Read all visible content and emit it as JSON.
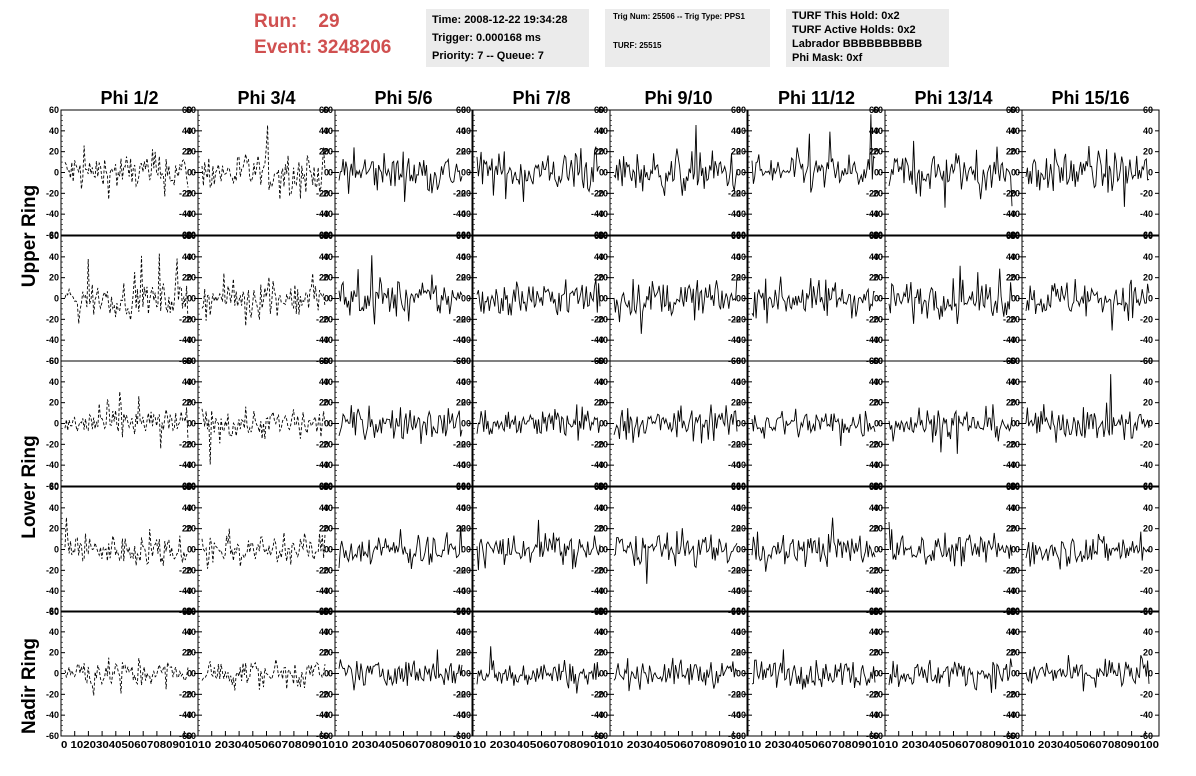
{
  "header": {
    "run_label": "Run:",
    "run_value": "29",
    "event_label": "Event:",
    "event_value": "3248206"
  },
  "time_box": {
    "time": "Time: 2008-12-22 19:34:28",
    "trigger": "Trigger: 0.000168 ms",
    "priority": "Priority: 7 -- Queue: 7"
  },
  "trig_box": {
    "trig_line": "Trig Num: 25506 -- Trig Type: PPS1",
    "turf_line": "TURF: 25515"
  },
  "turf_box": {
    "this_hold": "TURF This Hold: 0x2",
    "active_holds": "TURF Active Holds: 0x2",
    "labrador": "Labrador BBBBBBBBBB",
    "phi_mask": "Phi Mask: 0xf"
  },
  "columns": [
    "Phi 1/2",
    "Phi 3/4",
    "Phi 5/6",
    "Phi 7/8",
    "Phi 9/10",
    "Phi 11/12",
    "Phi 13/14",
    "Phi 15/16"
  ],
  "rows": [
    "Upper Ring",
    "Lower Ring",
    "Nadir Ring"
  ],
  "chart_data": {
    "type": "line",
    "description_grid": "5 waveform rows x 8 phi columns",
    "ylim": [
      -60,
      60
    ],
    "xlim": [
      0,
      100
    ],
    "y_ticks": [
      -60,
      -40,
      -20,
      0,
      20,
      40,
      60
    ],
    "x_tick_labels": [
      "0",
      "10",
      "20",
      "30",
      "40",
      "50",
      "60",
      "70",
      "80",
      "90",
      "100"
    ],
    "x_axis_text_first": "0 10203040506070809010",
    "x_axis_text_mid": "10 203040506070809010",
    "x_axis_text_last": "10 2030405060708090100",
    "grid": false,
    "dashed_columns": [
      0,
      1
    ],
    "amplitude_by_row": [
      18,
      16,
      14,
      14,
      12
    ],
    "line_color": "#000000"
  }
}
